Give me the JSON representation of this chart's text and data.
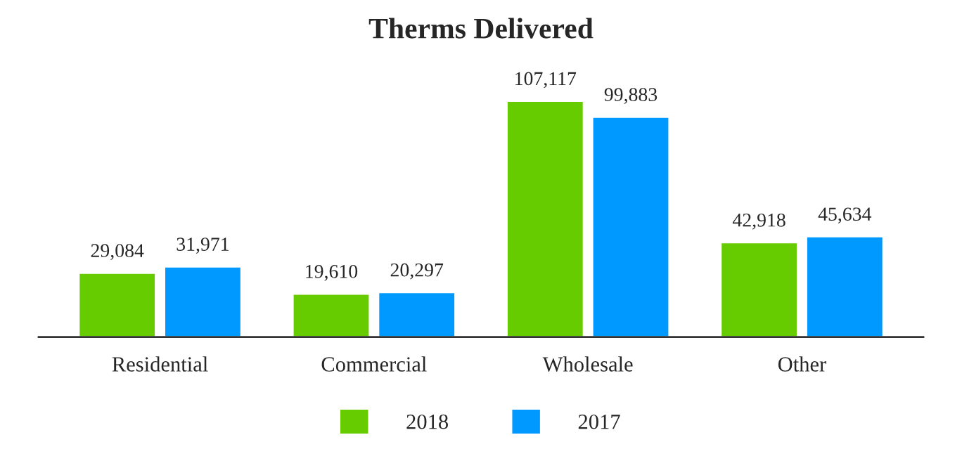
{
  "chart_data": {
    "type": "bar",
    "title": "Therms Delivered",
    "categories": [
      "Residential",
      "Commercial",
      "Wholesale",
      "Other"
    ],
    "series": [
      {
        "name": "2018",
        "color": "#66cc00",
        "values": [
          29084,
          19610,
          107117,
          42918
        ],
        "value_labels": [
          "29,084",
          "19,610",
          "107,117",
          "42,918"
        ]
      },
      {
        "name": "2017",
        "color": "#0099ff",
        "values": [
          31971,
          20297,
          99883,
          45634
        ],
        "value_labels": [
          "31,971",
          "20,297",
          "99,883",
          "45,634"
        ]
      }
    ],
    "legend": "bottom",
    "tick_labels": "x",
    "grid": false
  }
}
